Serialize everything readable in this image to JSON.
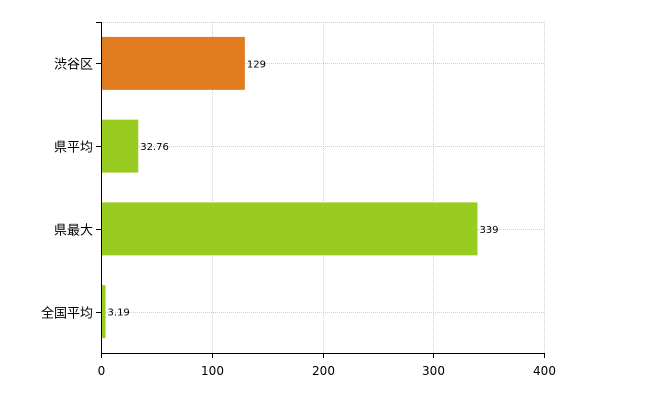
{
  "chart_data": {
    "type": "bar",
    "orientation": "horizontal",
    "title": "",
    "xlabel": "",
    "ylabel": "",
    "categories": [
      "渋谷区",
      "県平均",
      "県最大",
      "全国平均"
    ],
    "values": [
      129,
      32.76,
      339,
      3.19
    ],
    "value_labels": [
      "129",
      "32.76",
      "339",
      "3.19"
    ],
    "bar_colors": [
      "#e07b20",
      "#99cc20",
      "#99cc20",
      "#99cc20"
    ],
    "xlim": [
      0,
      400
    ],
    "xticks": [
      0,
      100,
      200,
      300,
      400
    ],
    "xtick_labels": [
      "0",
      "100",
      "200",
      "300",
      "400"
    ],
    "grid": true,
    "legend": "none"
  }
}
